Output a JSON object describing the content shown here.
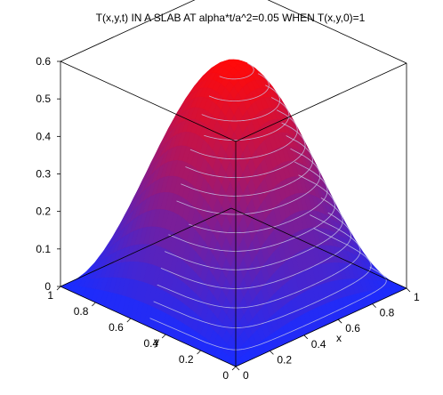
{
  "chart_data": {
    "type": "surface",
    "title": "T(x,y,t) IN A SLAB AT alpha*t/a^2=0.05 WHEN T(x,y,0)=1",
    "xlabel": "x",
    "ylabel": "y",
    "zlabel": "",
    "xlim": [
      0,
      1
    ],
    "ylim": [
      0,
      1
    ],
    "zlim": [
      0,
      0.6
    ],
    "x_ticks": [
      "0",
      "0.2",
      "0.4",
      "0.6",
      "0.8",
      "1"
    ],
    "y_ticks": [
      "0",
      "0.2",
      "0.4",
      "0.6",
      "0.8",
      "1"
    ],
    "z_ticks": [
      "0",
      "0.1",
      "0.2",
      "0.3",
      "0.4",
      "0.5",
      "0.6"
    ],
    "peak": {
      "x": 0.5,
      "y": 0.5,
      "z": 0.6
    },
    "surface_form": "0.6*sin(pi*x)*sin(pi*y)",
    "colormap": {
      "low": "#1a2cff",
      "high": "#ff0a0a"
    },
    "contour_levels": [
      0.02,
      0.06,
      0.1,
      0.14,
      0.18,
      0.22,
      0.26,
      0.3,
      0.34,
      0.38,
      0.42,
      0.46,
      0.5,
      0.54,
      0.58
    ],
    "bounding_box": true
  }
}
